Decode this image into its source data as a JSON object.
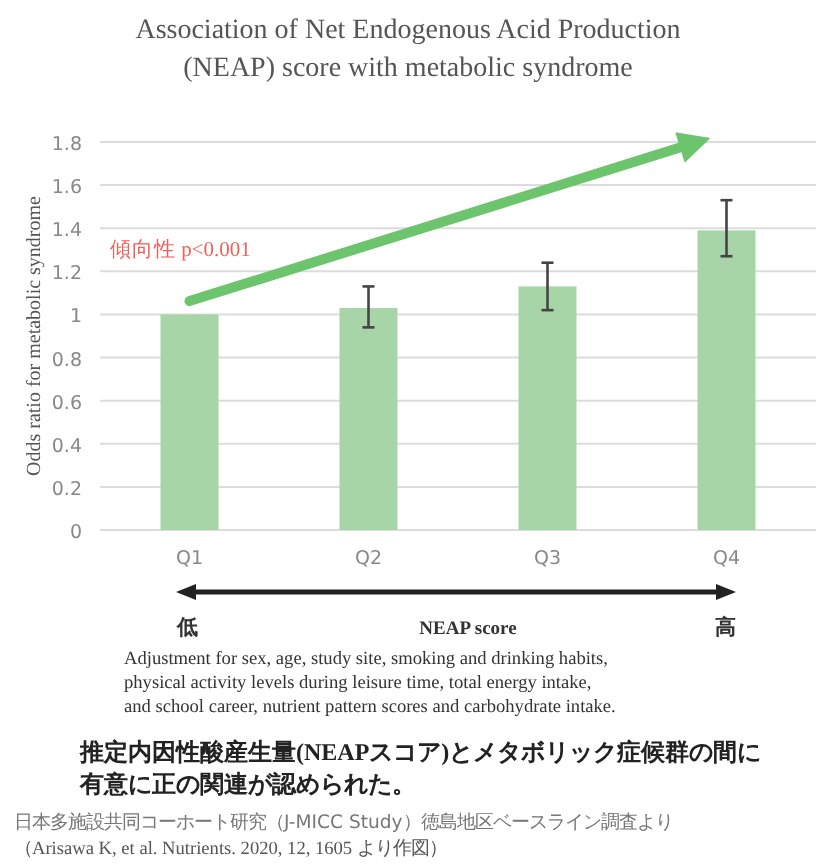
{
  "chart_data": {
    "type": "bar",
    "title": [
      "Association of Net Endogenous Acid Production",
      "(NEAP) score with metabolic syndrome"
    ],
    "ylabel": "Odds ratio for metabolic syndrome",
    "xlabel": "NEAP score",
    "categories": [
      "Q1",
      "Q2",
      "Q3",
      "Q4"
    ],
    "values": [
      1.0,
      1.03,
      1.13,
      1.39
    ],
    "errors": [
      null,
      [
        0.94,
        1.13
      ],
      [
        1.02,
        1.24
      ],
      [
        1.27,
        1.53
      ]
    ],
    "color": "#a8d5a8",
    "ylim": [
      0,
      1.8
    ],
    "yticks": [
      0,
      0.2,
      0.4,
      0.6,
      0.8,
      1,
      1.2,
      1.4,
      1.6,
      1.8
    ],
    "grid": "y",
    "annotations": [
      "傾向性 p<0.001",
      "低",
      "高",
      "Adjustment for sex, age, study site, smoking and drinking habits,",
      "physical activity levels during leisure time, total energy intake,",
      "and school career, nutrient pattern scores  and carbohydrate intake.",
      "推定内因性酸産生量(NEAPスコア)とメタボリック症候群の間に",
      "有意に正の関連が認められた。",
      "日本多施設共同コーホート研究（J-MICC Study）徳島地区ベースライン調査より",
      "（Arisawa K, et al. Nutrients. 2020, 12, 1605 より作図）"
    ]
  }
}
